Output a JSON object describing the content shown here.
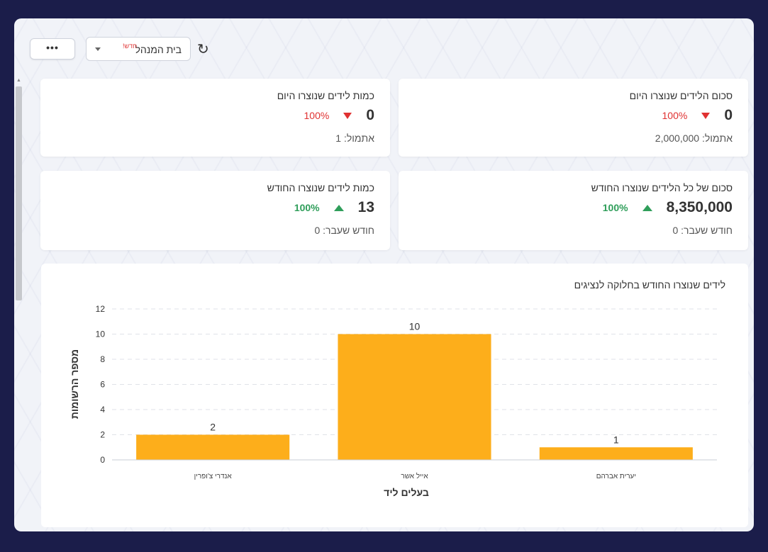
{
  "toolbar": {
    "more_label": "•••",
    "select_value": "בית המנהל",
    "select_badge": "חדש!",
    "refresh_icon": "↻"
  },
  "cards": {
    "sum_today": {
      "title": "סכום הלידים שנוצרו היום",
      "value": "0",
      "change": "100%",
      "trend": "down",
      "sub": "אתמול: 2,000,000"
    },
    "count_today": {
      "title": "כמות לידים שנוצרו היום",
      "value": "0",
      "change": "100%",
      "trend": "down",
      "sub": "אתמול: 1"
    },
    "sum_month": {
      "title": "סכום של כל הלידים שנוצרו החודש",
      "value": "8,350,000",
      "change": "100%",
      "trend": "up",
      "sub": "חודש שעבר: 0"
    },
    "count_month": {
      "title": "כמות לידים שנוצרו החודש",
      "value": "13",
      "change": "100%",
      "trend": "up",
      "sub": "חודש שעבר: 0"
    }
  },
  "colors": {
    "bar": "#fdae1b",
    "up": "#2f9e5a",
    "down": "#e03131",
    "frame": "#1b1d4a"
  },
  "chart_data": {
    "type": "bar",
    "title": "לידים שנוצרו החודש בחלוקה לנציגים",
    "xlabel": "בעלים ליד",
    "ylabel": "מספר הרשומות",
    "categories": [
      "אנדרי צ'ופרין",
      "אייל אשר",
      "יערית אברהם"
    ],
    "values": [
      2,
      10,
      1
    ],
    "ylim": [
      0,
      12
    ],
    "yticks": [
      0,
      2,
      4,
      6,
      8,
      10,
      12
    ],
    "grid": true
  }
}
